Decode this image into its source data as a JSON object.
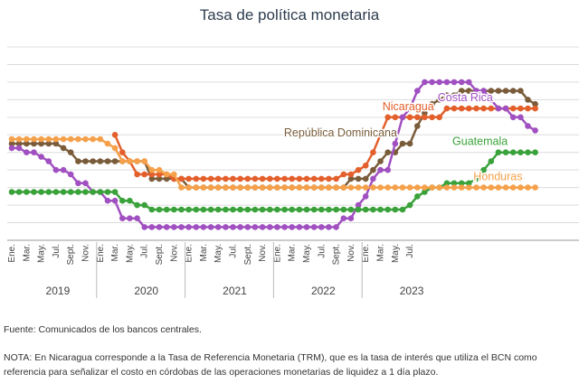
{
  "chart_data": {
    "type": "line",
    "title": "Tasa de política monetaria",
    "x_start": "2019-01",
    "month_ticks": [
      "Ene.",
      "Mar.",
      "May.",
      "Jul.",
      "Sept.",
      "Nov.",
      "Ene.",
      "Mar.",
      "May.",
      "Jul.",
      "Sept.",
      "Nov.",
      "Ene.",
      "Mar.",
      "May.",
      "Jul.",
      "Sept.",
      "Nov.",
      "Ene.",
      "Mar.",
      "May.",
      "Jul.",
      "Sept.",
      "Nov.",
      "Ene.",
      "Mar.",
      "May.",
      "Jul."
    ],
    "years": [
      "2019",
      "2020",
      "2021",
      "2022",
      "2023"
    ],
    "ylim": [
      0,
      11
    ],
    "grid": true,
    "series": [
      {
        "name": "República Dominicana",
        "color": "#7a5c3a",
        "values": [
          5.5,
          5.5,
          5.5,
          5.5,
          5.5,
          5.5,
          5.5,
          5.25,
          5.0,
          4.5,
          4.5,
          4.5,
          4.5,
          4.5,
          4.5,
          4.5,
          4.5,
          4.5,
          4.5,
          3.5,
          3.5,
          3.5,
          3.5,
          3.5,
          3.0,
          3.0,
          3.0,
          3.0,
          3.0,
          3.0,
          3.0,
          3.0,
          3.0,
          3.0,
          3.0,
          3.0,
          3.0,
          3.0,
          3.0,
          3.0,
          3.0,
          3.0,
          3.0,
          3.0,
          3.0,
          3.0,
          3.5,
          3.5,
          3.5,
          4.0,
          4.5,
          5.0,
          5.0,
          5.5,
          5.5,
          6.5,
          7.25,
          7.75,
          8.0,
          8.25,
          8.25,
          8.5,
          8.5,
          8.5,
          8.5,
          8.5,
          8.5,
          8.5,
          8.5,
          8.5,
          8.0,
          7.75
        ],
        "label_month": 53
      },
      {
        "name": "Nicaragua",
        "color": "#e35f2b",
        "values": [
          null,
          null,
          null,
          null,
          null,
          null,
          null,
          null,
          null,
          null,
          null,
          null,
          null,
          null,
          6.0,
          5.0,
          4.5,
          3.75,
          3.75,
          3.75,
          3.75,
          3.75,
          3.5,
          3.5,
          3.5,
          3.5,
          3.5,
          3.5,
          3.5,
          3.5,
          3.5,
          3.5,
          3.5,
          3.5,
          3.5,
          3.5,
          3.5,
          3.5,
          3.5,
          3.5,
          3.5,
          3.5,
          3.5,
          3.5,
          3.5,
          3.75,
          3.75,
          4.0,
          4.25,
          5.0,
          6.0,
          7.0,
          7.0,
          7.0,
          7.0,
          7.0,
          7.0,
          7.0,
          7.0,
          7.5,
          7.5,
          7.5,
          7.5,
          7.5,
          7.5,
          7.5,
          7.5,
          7.5,
          7.5,
          7.5,
          7.5,
          7.5
        ],
        "label_month": 58
      },
      {
        "name": "Costa Rica",
        "color": "#a050c0",
        "values": [
          5.25,
          5.25,
          5.0,
          5.0,
          4.75,
          4.5,
          4.0,
          4.0,
          3.75,
          3.25,
          3.25,
          2.75,
          2.75,
          2.25,
          2.25,
          1.25,
          1.25,
          1.25,
          0.75,
          0.75,
          0.75,
          0.75,
          0.75,
          0.75,
          0.75,
          0.75,
          0.75,
          0.75,
          0.75,
          0.75,
          0.75,
          0.75,
          0.75,
          0.75,
          0.75,
          0.75,
          0.75,
          0.75,
          0.75,
          0.75,
          0.75,
          0.75,
          0.75,
          0.75,
          0.75,
          1.25,
          1.25,
          2.0,
          2.5,
          3.5,
          4.0,
          4.0,
          5.5,
          7.0,
          7.5,
          8.5,
          9.0,
          9.0,
          9.0,
          9.0,
          9.0,
          9.0,
          9.0,
          8.5,
          8.5,
          8.0,
          7.5,
          7.5,
          7.0,
          7.0,
          6.5,
          6.25
        ],
        "label_month": 66
      },
      {
        "name": "Guatemala",
        "color": "#3aa23a",
        "values": [
          2.75,
          2.75,
          2.75,
          2.75,
          2.75,
          2.75,
          2.75,
          2.75,
          2.75,
          2.75,
          2.75,
          2.75,
          2.75,
          2.75,
          2.75,
          2.25,
          2.25,
          2.0,
          2.0,
          1.75,
          1.75,
          1.75,
          1.75,
          1.75,
          1.75,
          1.75,
          1.75,
          1.75,
          1.75,
          1.75,
          1.75,
          1.75,
          1.75,
          1.75,
          1.75,
          1.75,
          1.75,
          1.75,
          1.75,
          1.75,
          1.75,
          1.75,
          1.75,
          1.75,
          1.75,
          1.75,
          1.75,
          1.75,
          1.75,
          1.75,
          1.75,
          1.75,
          1.75,
          1.75,
          2.0,
          2.5,
          2.75,
          3.0,
          3.0,
          3.25,
          3.25,
          3.25,
          3.25,
          3.5,
          4.0,
          4.5,
          5.0,
          5.0,
          5.0,
          5.0,
          5.0,
          5.0
        ],
        "label_month": 68
      },
      {
        "name": "Honduras",
        "color": "#f5a04a",
        "values": [
          5.75,
          5.75,
          5.75,
          5.75,
          5.75,
          5.75,
          5.75,
          5.75,
          5.75,
          5.75,
          5.75,
          5.75,
          5.75,
          5.5,
          5.25,
          4.5,
          4.5,
          4.5,
          4.5,
          4.0,
          4.0,
          3.75,
          3.75,
          3.0,
          3.0,
          3.0,
          3.0,
          3.0,
          3.0,
          3.0,
          3.0,
          3.0,
          3.0,
          3.0,
          3.0,
          3.0,
          3.0,
          3.0,
          3.0,
          3.0,
          3.0,
          3.0,
          3.0,
          3.0,
          3.0,
          3.0,
          3.0,
          3.0,
          3.0,
          3.0,
          3.0,
          3.0,
          3.0,
          3.0,
          3.0,
          3.0,
          3.0,
          3.0,
          3.0,
          3.0,
          3.0,
          3.0,
          3.0,
          3.0,
          3.0,
          3.0,
          3.0,
          3.0,
          3.0,
          3.0,
          3.0,
          3.0
        ],
        "label_month": 70
      }
    ]
  },
  "footer": {
    "source": "Fuente: Comunicados de los bancos centrales.",
    "note": "NOTA: En Nicaragua corresponde a la Tasa de Referencia Monetaria (TRM), que es la tasa de interés que utiliza el BCN como referencia para señalizar el costo en córdobas de las operaciones monetarias de liquidez a 1 día plazo."
  }
}
